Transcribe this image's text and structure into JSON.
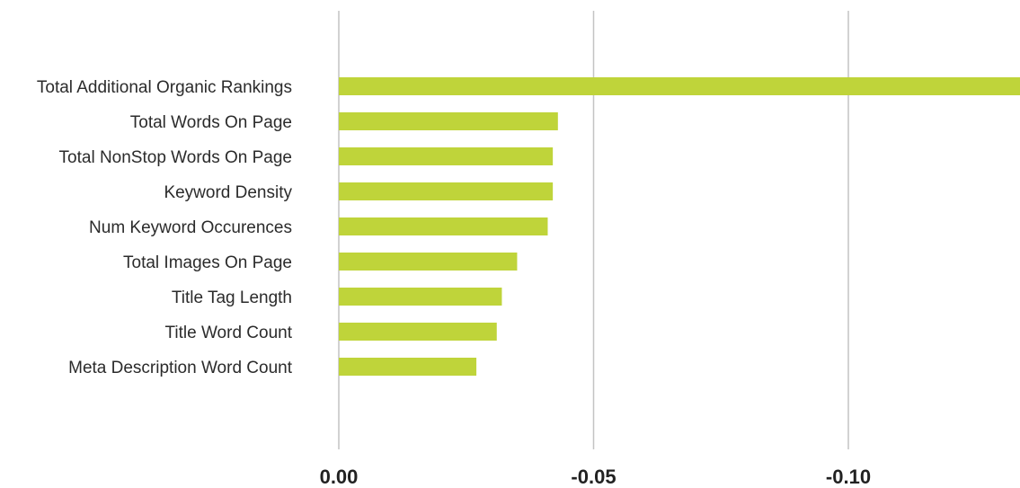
{
  "chart_data": {
    "type": "bar",
    "orientation": "horizontal",
    "categories": [
      "Total Additional Organic Rankings",
      "Total Words On Page",
      "Total NonStop Words On Page",
      "Keyword Density",
      "Num Keyword Occurences",
      "Total Images On Page",
      "Title Tag Length",
      "Title Word Count",
      "Meta Description Word Count"
    ],
    "values": [
      -0.134,
      -0.043,
      -0.042,
      -0.042,
      -0.041,
      -0.035,
      -0.032,
      -0.031,
      -0.027
    ],
    "xticks": [
      0.0,
      -0.05,
      -0.1
    ],
    "xtick_labels": [
      "0.00",
      "-0.05",
      "-0.10"
    ],
    "xlim": [
      0.0,
      -0.134
    ],
    "axis_direction": "reversed",
    "grid": "vertical",
    "title": "",
    "xlabel": "",
    "ylabel": "",
    "colors": {
      "bar": "#bfd43a",
      "grid": "#c4c4c4",
      "label": "#2b2b2b",
      "tick": "#222222"
    }
  }
}
